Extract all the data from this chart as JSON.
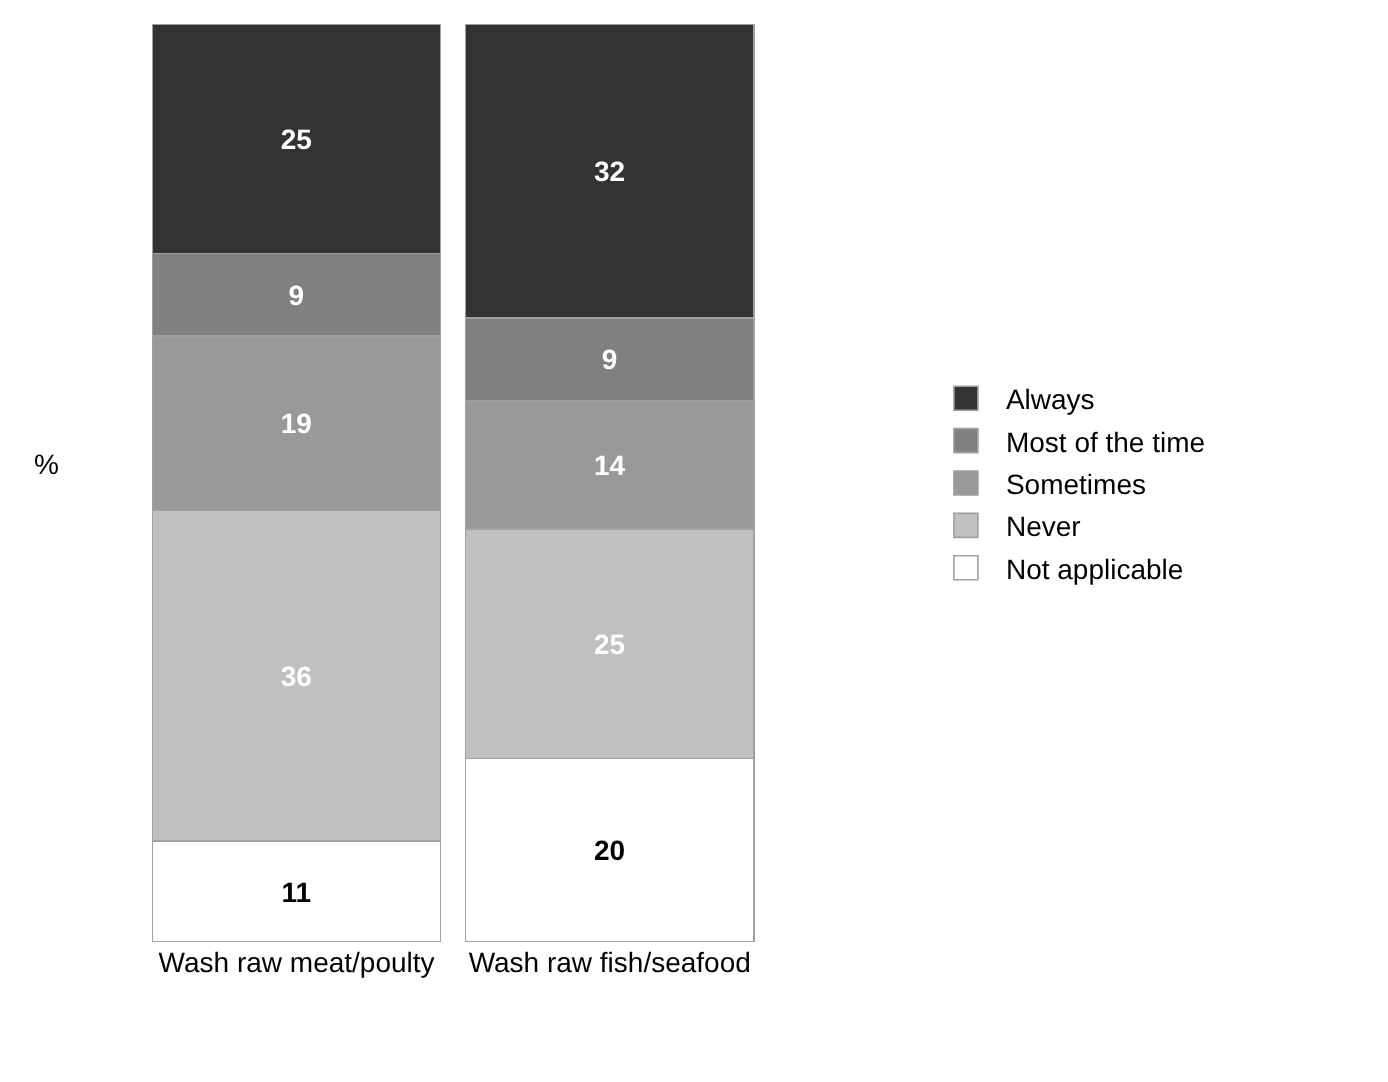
{
  "chart_data": {
    "type": "bar",
    "stacked": true,
    "ylabel": "%",
    "categories": [
      "Wash raw meat/poulty",
      "Wash raw fish/seafood"
    ],
    "series": [
      {
        "name": "Not applicable",
        "color": "#ffffff",
        "values": [
          11,
          20
        ]
      },
      {
        "name": "Never",
        "color": "#c0c0c0",
        "values": [
          36,
          25
        ]
      },
      {
        "name": "Sometimes",
        "color": "#999999",
        "values": [
          19,
          14
        ]
      },
      {
        "name": "Most of the time",
        "color": "#808080",
        "values": [
          9,
          9
        ]
      },
      {
        "name": "Always",
        "color": "#333333",
        "values": [
          25,
          32
        ]
      }
    ],
    "ylim": [
      0,
      100
    ],
    "data_labels": true,
    "legend": "right"
  }
}
